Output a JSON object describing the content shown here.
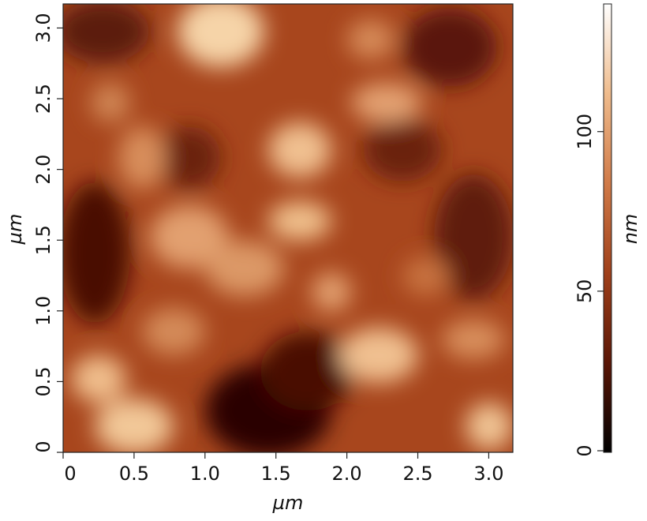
{
  "chart_data": {
    "type": "heatmap",
    "xlabel": "µm",
    "ylabel": "µm",
    "xlim": [
      0,
      3.17
    ],
    "ylim": [
      0,
      3.17
    ],
    "xticks": [
      0,
      0.5,
      {
        "value": 1,
        "label": "1.0"
      },
      1.5,
      {
        "value": 2,
        "label": "2.0"
      },
      2.5,
      {
        "value": 3,
        "label": "3.0"
      }
    ],
    "yticks": [
      0,
      0.5,
      {
        "value": 1,
        "label": "1.0"
      },
      1.5,
      {
        "value": 2,
        "label": "2.0"
      },
      2.5,
      {
        "value": 3,
        "label": "3.0"
      }
    ],
    "colorbar": {
      "label": "nm",
      "lim": [
        0,
        140
      ],
      "ticks": [
        0,
        50,
        100
      ],
      "colors": [
        "#000000",
        "#5a1606",
        "#a0401a",
        "#d07a48",
        "#efbb8c",
        "#ffffff"
      ]
    }
  }
}
